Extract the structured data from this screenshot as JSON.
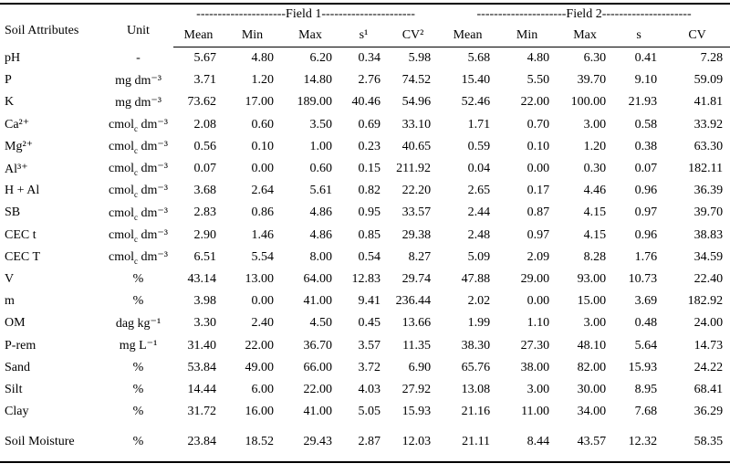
{
  "table": {
    "header": {
      "attribute": "Soil Attributes",
      "unit": "Unit",
      "groups": [
        "---------------------Field 1----------------------",
        "---------------------Field 2---------------------"
      ],
      "columns": [
        "Mean",
        "Min",
        "Max",
        "s¹",
        "CV²",
        "Mean",
        "Min",
        "Max",
        "s",
        "CV"
      ]
    },
    "rows": [
      {
        "attribute": "pH",
        "unit": "-",
        "values": [
          "5.67",
          "4.80",
          "6.20",
          "0.34",
          "5.98",
          "5.68",
          "4.80",
          "6.30",
          "0.41",
          "7.28"
        ]
      },
      {
        "attribute": "P",
        "unit": "mg dm⁻³",
        "values": [
          "3.71",
          "1.20",
          "14.80",
          "2.76",
          "74.52",
          "15.40",
          "5.50",
          "39.70",
          "9.10",
          "59.09"
        ]
      },
      {
        "attribute": "K",
        "unit": "mg dm⁻³",
        "values": [
          "73.62",
          "17.00",
          "189.00",
          "40.46",
          "54.96",
          "52.46",
          "22.00",
          "100.00",
          "21.93",
          "41.81"
        ]
      },
      {
        "attribute": "Ca²⁺",
        "unit": [
          "cmol",
          "c",
          " dm⁻³"
        ],
        "values": [
          "2.08",
          "0.60",
          "3.50",
          "0.69",
          "33.10",
          "1.71",
          "0.70",
          "3.00",
          "0.58",
          "33.92"
        ]
      },
      {
        "attribute": "Mg²⁺",
        "unit": [
          "cmol",
          "c",
          " dm⁻³"
        ],
        "values": [
          "0.56",
          "0.10",
          "1.00",
          "0.23",
          "40.65",
          "0.59",
          "0.10",
          "1.20",
          "0.38",
          "63.30"
        ]
      },
      {
        "attribute": "Al³⁺",
        "unit": [
          "cmol",
          "c",
          " dm⁻³"
        ],
        "values": [
          "0.07",
          "0.00",
          "0.60",
          "0.15",
          "211.92",
          "0.04",
          "0.00",
          "0.30",
          "0.07",
          "182.11"
        ]
      },
      {
        "attribute": "H + Al",
        "unit": [
          "cmol",
          "c",
          " dm⁻³"
        ],
        "values": [
          "3.68",
          "2.64",
          "5.61",
          "0.82",
          "22.20",
          "2.65",
          "0.17",
          "4.46",
          "0.96",
          "36.39"
        ]
      },
      {
        "attribute": "SB",
        "unit": [
          "cmol",
          "c",
          " dm⁻³"
        ],
        "values": [
          "2.83",
          "0.86",
          "4.86",
          "0.95",
          "33.57",
          "2.44",
          "0.87",
          "4.15",
          "0.97",
          "39.70"
        ]
      },
      {
        "attribute": "CEC t",
        "unit": [
          "cmol",
          "c",
          " dm⁻³"
        ],
        "values": [
          "2.90",
          "1.46",
          "4.86",
          "0.85",
          "29.38",
          "2.48",
          "0.97",
          "4.15",
          "0.96",
          "38.83"
        ]
      },
      {
        "attribute": "CEC T",
        "unit": [
          "cmol",
          "c",
          " dm⁻³"
        ],
        "values": [
          "6.51",
          "5.54",
          "8.00",
          "0.54",
          "8.27",
          "5.09",
          "2.09",
          "8.28",
          "1.76",
          "34.59"
        ]
      },
      {
        "attribute": "V",
        "unit": "%",
        "values": [
          "43.14",
          "13.00",
          "64.00",
          "12.83",
          "29.74",
          "47.88",
          "29.00",
          "93.00",
          "10.73",
          "22.40"
        ]
      },
      {
        "attribute": "m",
        "unit": "%",
        "values": [
          "3.98",
          "0.00",
          "41.00",
          "9.41",
          "236.44",
          "2.02",
          "0.00",
          "15.00",
          "3.69",
          "182.92"
        ]
      },
      {
        "attribute": "OM",
        "unit": "dag kg⁻¹",
        "values": [
          "3.30",
          "2.40",
          "4.50",
          "0.45",
          "13.66",
          "1.99",
          "1.10",
          "3.00",
          "0.48",
          "24.00"
        ]
      },
      {
        "attribute": "P-rem",
        "unit": "mg L⁻¹",
        "values": [
          "31.40",
          "22.00",
          "36.70",
          "3.57",
          "11.35",
          "38.30",
          "27.30",
          "48.10",
          "5.64",
          "14.73"
        ]
      },
      {
        "attribute": "Sand",
        "unit": "%",
        "values": [
          "53.84",
          "49.00",
          "66.00",
          "3.72",
          "6.90",
          "65.76",
          "38.00",
          "82.00",
          "15.93",
          "24.22"
        ]
      },
      {
        "attribute": "Silt",
        "unit": "%",
        "values": [
          "14.44",
          "6.00",
          "22.00",
          "4.03",
          "27.92",
          "13.08",
          "3.00",
          "30.00",
          "8.95",
          "68.41"
        ]
      },
      {
        "attribute": "Clay",
        "unit": "%",
        "values": [
          "31.72",
          "16.00",
          "41.00",
          "5.05",
          "15.93",
          "21.16",
          "11.00",
          "34.00",
          "7.68",
          "36.29"
        ]
      },
      {
        "attribute": "Soil Moisture",
        "unit": "%",
        "values": [
          "23.84",
          "18.52",
          "29.43",
          "2.87",
          "12.03",
          "21.11",
          "8.44",
          "43.57",
          "12.32",
          "58.35"
        ]
      }
    ]
  }
}
